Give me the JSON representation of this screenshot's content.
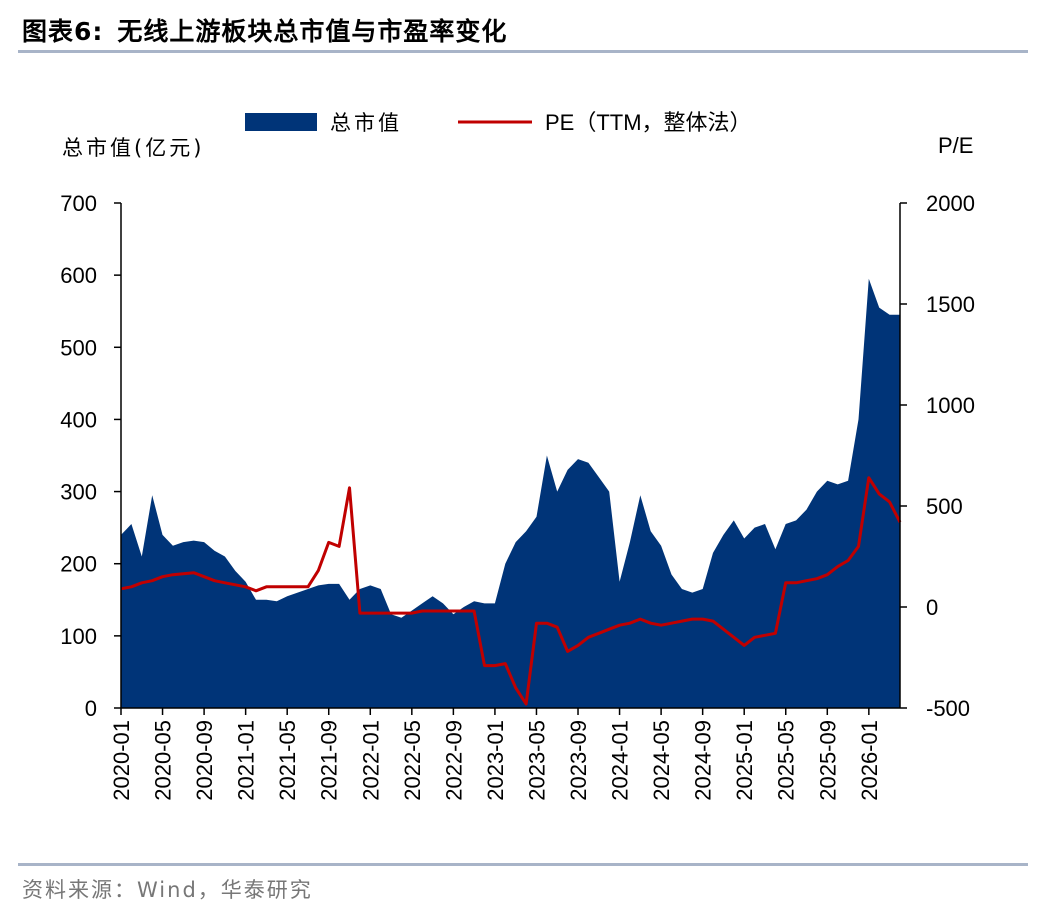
{
  "figure": {
    "number": "图表6:",
    "title": "无线上游板块总市值与市盈率变化",
    "source": "资料来源：Wind，华泰研究"
  },
  "chart_data": {
    "type": "area",
    "left_axis": {
      "label": "总市值(亿元)",
      "ylim": [
        0,
        700
      ],
      "ticks": [
        "0",
        "100",
        "200",
        "300",
        "400",
        "500",
        "600",
        "700"
      ]
    },
    "right_axis": {
      "label": "P/E",
      "ylim": [
        -500,
        2000
      ],
      "ticks": [
        "-500",
        "0",
        "500",
        "1000",
        "1500",
        "2000"
      ]
    },
    "x_ticks": [
      "2020-01",
      "2020-05",
      "2020-09",
      "2021-01",
      "2021-05",
      "2021-09",
      "2022-01",
      "2022-05",
      "2022-09",
      "2023-01",
      "2023-05",
      "2023-09",
      "2024-01",
      "2024-05",
      "2024-09",
      "2025-01",
      "2025-05",
      "2025-09",
      "2026-01"
    ],
    "x_range": [
      "2020-01",
      "2026-04"
    ],
    "grid": false,
    "legend_position": "top",
    "series": [
      {
        "name": "总市值",
        "type": "area",
        "axis": "left",
        "color": "#003478",
        "values": [
          [
            "2020-01",
            240
          ],
          [
            "2020-02",
            255
          ],
          [
            "2020-03",
            210
          ],
          [
            "2020-04",
            295
          ],
          [
            "2020-05",
            240
          ],
          [
            "2020-06",
            225
          ],
          [
            "2020-07",
            230
          ],
          [
            "2020-08",
            232
          ],
          [
            "2020-09",
            230
          ],
          [
            "2020-10",
            218
          ],
          [
            "2020-11",
            210
          ],
          [
            "2020-12",
            190
          ],
          [
            "2021-01",
            175
          ],
          [
            "2021-02",
            150
          ],
          [
            "2021-03",
            150
          ],
          [
            "2021-04",
            148
          ],
          [
            "2021-05",
            155
          ],
          [
            "2021-06",
            160
          ],
          [
            "2021-07",
            165
          ],
          [
            "2021-08",
            170
          ],
          [
            "2021-09",
            172
          ],
          [
            "2021-10",
            172
          ],
          [
            "2021-11",
            150
          ],
          [
            "2021-12",
            165
          ],
          [
            "2022-01",
            170
          ],
          [
            "2022-02",
            165
          ],
          [
            "2022-03",
            130
          ],
          [
            "2022-04",
            125
          ],
          [
            "2022-05",
            135
          ],
          [
            "2022-06",
            145
          ],
          [
            "2022-07",
            155
          ],
          [
            "2022-08",
            145
          ],
          [
            "2022-09",
            130
          ],
          [
            "2022-10",
            140
          ],
          [
            "2022-11",
            148
          ],
          [
            "2022-12",
            145
          ],
          [
            "2023-01",
            145
          ],
          [
            "2023-02",
            200
          ],
          [
            "2023-03",
            230
          ],
          [
            "2023-04",
            245
          ],
          [
            "2023-05",
            265
          ],
          [
            "2023-06",
            350
          ],
          [
            "2023-07",
            300
          ],
          [
            "2023-08",
            330
          ],
          [
            "2023-09",
            345
          ],
          [
            "2023-10",
            340
          ],
          [
            "2023-11",
            320
          ],
          [
            "2023-12",
            300
          ],
          [
            "2024-01",
            175
          ],
          [
            "2024-02",
            230
          ],
          [
            "2024-03",
            295
          ],
          [
            "2024-04",
            245
          ],
          [
            "2024-05",
            225
          ],
          [
            "2024-06",
            185
          ],
          [
            "2024-07",
            165
          ],
          [
            "2024-08",
            160
          ],
          [
            "2024-09",
            165
          ],
          [
            "2024-10",
            215
          ],
          [
            "2024-11",
            240
          ],
          [
            "2024-12",
            260
          ],
          [
            "2025-01",
            235
          ],
          [
            "2025-02",
            250
          ],
          [
            "2025-03",
            255
          ],
          [
            "2025-04",
            220
          ],
          [
            "2025-05",
            255
          ],
          [
            "2025-06",
            260
          ],
          [
            "2025-07",
            275
          ],
          [
            "2025-08",
            300
          ],
          [
            "2025-09",
            315
          ],
          [
            "2025-10",
            310
          ],
          [
            "2025-11",
            315
          ],
          [
            "2025-12",
            400
          ],
          [
            "2026-01",
            595
          ],
          [
            "2026-02",
            555
          ],
          [
            "2026-03",
            545
          ],
          [
            "2026-04",
            545
          ]
        ]
      },
      {
        "name": "PE（TTM，整体法）",
        "type": "line",
        "axis": "right",
        "color": "#c00000",
        "values": [
          [
            "2020-01",
            90
          ],
          [
            "2020-02",
            100
          ],
          [
            "2020-03",
            120
          ],
          [
            "2020-04",
            130
          ],
          [
            "2020-05",
            150
          ],
          [
            "2020-06",
            160
          ],
          [
            "2020-07",
            165
          ],
          [
            "2020-08",
            170
          ],
          [
            "2020-09",
            150
          ],
          [
            "2020-10",
            130
          ],
          [
            "2020-11",
            120
          ],
          [
            "2020-12",
            110
          ],
          [
            "2021-01",
            100
          ],
          [
            "2021-02",
            80
          ],
          [
            "2021-03",
            100
          ],
          [
            "2021-04",
            100
          ],
          [
            "2021-05",
            100
          ],
          [
            "2021-06",
            100
          ],
          [
            "2021-07",
            100
          ],
          [
            "2021-08",
            180
          ],
          [
            "2021-09",
            320
          ],
          [
            "2021-10",
            300
          ],
          [
            "2021-11",
            590
          ],
          [
            "2021-12",
            -30
          ],
          [
            "2022-01",
            -30
          ],
          [
            "2022-02",
            -30
          ],
          [
            "2022-03",
            -30
          ],
          [
            "2022-04",
            -30
          ],
          [
            "2022-05",
            -30
          ],
          [
            "2022-06",
            -20
          ],
          [
            "2022-07",
            -20
          ],
          [
            "2022-08",
            -20
          ],
          [
            "2022-09",
            -20
          ],
          [
            "2022-10",
            -20
          ],
          [
            "2022-11",
            -20
          ],
          [
            "2022-12",
            -290
          ],
          [
            "2023-01",
            -290
          ],
          [
            "2023-02",
            -280
          ],
          [
            "2023-03",
            -400
          ],
          [
            "2023-04",
            -480
          ],
          [
            "2023-05",
            -80
          ],
          [
            "2023-06",
            -80
          ],
          [
            "2023-07",
            -100
          ],
          [
            "2023-08",
            -220
          ],
          [
            "2023-09",
            -190
          ],
          [
            "2023-10",
            -150
          ],
          [
            "2023-11",
            -130
          ],
          [
            "2023-12",
            -110
          ],
          [
            "2024-01",
            -90
          ],
          [
            "2024-02",
            -80
          ],
          [
            "2024-03",
            -60
          ],
          [
            "2024-04",
            -80
          ],
          [
            "2024-05",
            -90
          ],
          [
            "2024-06",
            -80
          ],
          [
            "2024-07",
            -70
          ],
          [
            "2024-08",
            -60
          ],
          [
            "2024-09",
            -60
          ],
          [
            "2024-10",
            -70
          ],
          [
            "2024-11",
            -110
          ],
          [
            "2024-12",
            -150
          ],
          [
            "2025-01",
            -190
          ],
          [
            "2025-02",
            -150
          ],
          [
            "2025-03",
            -140
          ],
          [
            "2025-04",
            -130
          ],
          [
            "2025-05",
            120
          ],
          [
            "2025-06",
            120
          ],
          [
            "2025-07",
            130
          ],
          [
            "2025-08",
            140
          ],
          [
            "2025-09",
            160
          ],
          [
            "2025-10",
            200
          ],
          [
            "2025-11",
            230
          ],
          [
            "2025-12",
            300
          ],
          [
            "2026-01",
            640
          ],
          [
            "2026-02",
            560
          ],
          [
            "2026-03",
            520
          ],
          [
            "2026-04",
            420
          ]
        ]
      }
    ]
  }
}
